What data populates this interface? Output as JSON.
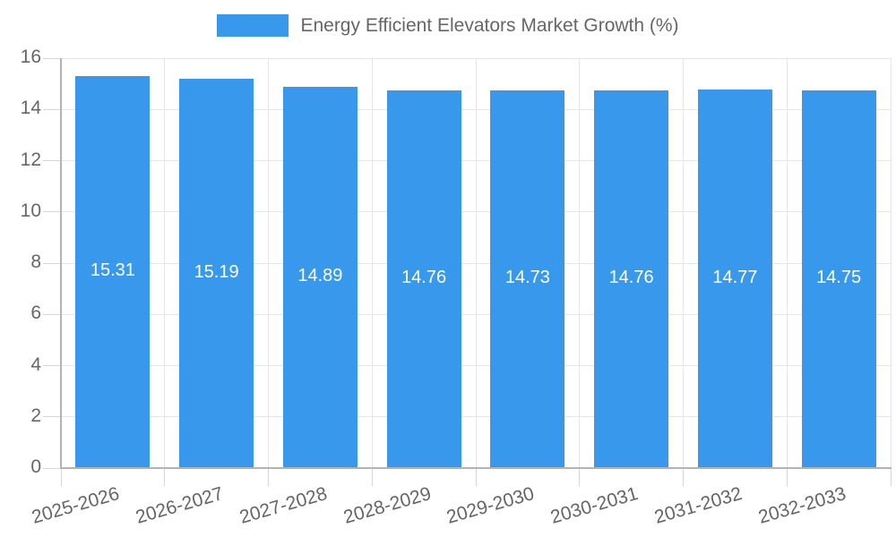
{
  "chart_data": {
    "type": "bar",
    "title": "Energy Efficient Elevators Market Growth (%)",
    "categories": [
      "2025-2026",
      "2026-2027",
      "2027-2028",
      "2028-2029",
      "2029-2030",
      "2030-2031",
      "2031-2032",
      "2032-2033"
    ],
    "values": [
      15.31,
      15.19,
      14.89,
      14.76,
      14.73,
      14.76,
      14.77,
      14.75
    ],
    "value_labels": [
      "15.31",
      "15.19",
      "14.89",
      "14.76",
      "14.73",
      "14.76",
      "14.77",
      "14.75"
    ],
    "xlabel": "",
    "ylabel": "",
    "ylim": [
      0,
      16
    ],
    "yticks": [
      0,
      2,
      4,
      6,
      8,
      10,
      12,
      14,
      16
    ],
    "grid": true,
    "legend_position": "top",
    "colors": {
      "bar": "#3899EC",
      "value_label_text": "#FFFFFF",
      "tick_text": "#666666",
      "gridline": "#E6E6E6",
      "axis_line": "#B3B3B3",
      "tick_mark": "#D6D6D6",
      "background": "#FFFFFF"
    }
  }
}
